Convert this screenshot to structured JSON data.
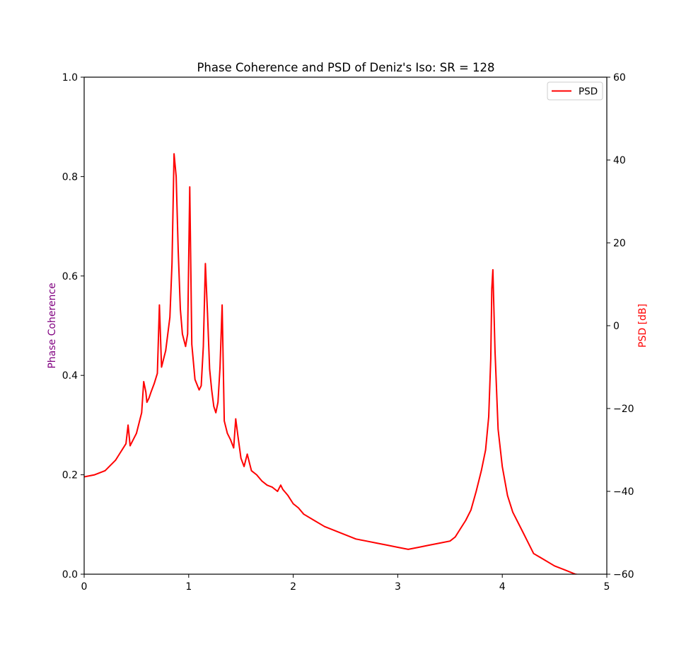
{
  "chart_data": {
    "type": "line",
    "title": "Phase Coherence and PSD of Deniz's Iso: SR = 128",
    "xlabel": "",
    "xlim": [
      0,
      5
    ],
    "x_ticks": [
      "0",
      "1",
      "2",
      "3",
      "4",
      "5"
    ],
    "y_left": {
      "label": "Phase Coherence",
      "label_color": "#800080",
      "lim": [
        0.0,
        1.0
      ],
      "ticks": [
        "0.0",
        "0.2",
        "0.4",
        "0.6",
        "0.8",
        "1.0"
      ]
    },
    "y_right": {
      "label": "PSD [dB]",
      "label_color": "#ff0000",
      "lim": [
        -60,
        60
      ],
      "ticks": [
        "−60",
        "−40",
        "−20",
        "0",
        "20",
        "40",
        "60"
      ]
    },
    "grid": false,
    "legend": {
      "placement": "top-right",
      "entries": [
        "PSD"
      ]
    },
    "series": [
      {
        "name": "PSD",
        "axis": "right",
        "color": "#ff0000",
        "x": [
          0.0,
          0.1,
          0.2,
          0.3,
          0.35,
          0.4,
          0.42,
          0.44,
          0.5,
          0.55,
          0.57,
          0.59,
          0.6,
          0.62,
          0.64,
          0.67,
          0.7,
          0.72,
          0.74,
          0.78,
          0.82,
          0.84,
          0.86,
          0.88,
          0.9,
          0.92,
          0.94,
          0.97,
          0.99,
          1.01,
          1.03,
          1.06,
          1.1,
          1.12,
          1.14,
          1.16,
          1.18,
          1.2,
          1.22,
          1.24,
          1.26,
          1.28,
          1.3,
          1.32,
          1.34,
          1.37,
          1.4,
          1.43,
          1.45,
          1.47,
          1.5,
          1.53,
          1.56,
          1.58,
          1.6,
          1.65,
          1.7,
          1.75,
          1.8,
          1.85,
          1.88,
          1.9,
          1.95,
          2.0,
          2.05,
          2.1,
          2.2,
          2.3,
          2.4,
          2.5,
          2.6,
          2.7,
          2.8,
          2.9,
          3.0,
          3.1,
          3.2,
          3.3,
          3.4,
          3.5,
          3.55,
          3.6,
          3.65,
          3.7,
          3.75,
          3.8,
          3.84,
          3.87,
          3.89,
          3.9,
          3.91,
          3.93,
          3.96,
          4.0,
          4.05,
          4.1,
          4.2,
          4.3,
          4.4,
          4.5,
          4.6,
          4.7,
          4.8,
          4.9
        ],
        "y": [
          -36.5,
          -36,
          -35,
          -32.5,
          -30.5,
          -28.5,
          -24,
          -29,
          -26,
          -21,
          -13.5,
          -16,
          -18.5,
          -17.5,
          -16,
          -14,
          -11.5,
          5,
          -10,
          -6,
          2,
          15,
          41.5,
          36,
          18,
          4,
          -2,
          -5,
          -2,
          33.5,
          -4.5,
          -13,
          -15.5,
          -14.5,
          -5,
          15,
          3,
          -10.5,
          -15.5,
          -19.5,
          -21,
          -18.5,
          -10,
          5,
          -23,
          -26,
          -27.5,
          -29.5,
          -22.5,
          -26.5,
          -32,
          -34,
          -31,
          -33,
          -35,
          -36,
          -37.5,
          -38.5,
          -39,
          -40,
          -38.5,
          -39.5,
          -41,
          -43,
          -44,
          -45.5,
          -47,
          -48.5,
          -49.5,
          -50.5,
          -51.5,
          -52,
          -52.5,
          -53,
          -53.5,
          -54,
          -53.5,
          -53,
          -52.5,
          -52,
          -51,
          -49,
          -47,
          -44.5,
          -40,
          -35,
          -30,
          -22,
          -8,
          9,
          13.5,
          -6,
          -25,
          -34,
          -41,
          -45,
          -50,
          -55,
          -56.5,
          -58,
          -59,
          -60,
          -60.5,
          -60.5
        ]
      }
    ]
  }
}
